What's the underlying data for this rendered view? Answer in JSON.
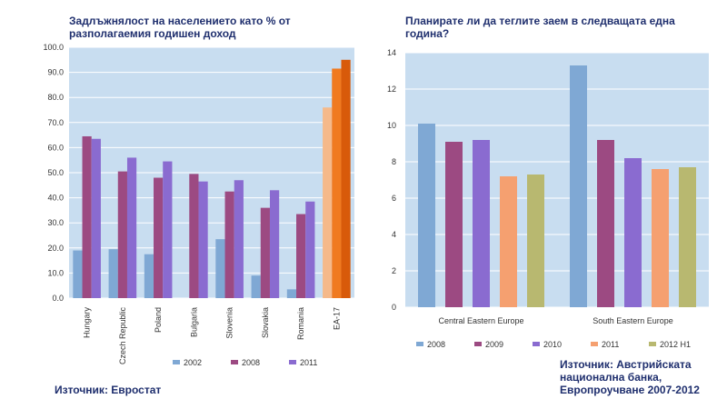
{
  "chart_data": [
    {
      "type": "bar",
      "title": "Задлъжнялост на населението като % от разполагаемия годишен доход",
      "source": "Източник: Евростат",
      "categories": [
        "Hungary",
        "Czech Republic",
        "Poland",
        "Bulgaria",
        "Slovenia",
        "Slovakia",
        "Romania",
        "EA-17"
      ],
      "series": [
        {
          "name": "2002",
          "values": [
            19,
            19.5,
            17.5,
            0,
            23.5,
            9,
            3.5,
            76
          ],
          "color": "#7fa8d4",
          "highlight": "#f5b98a"
        },
        {
          "name": "2008",
          "values": [
            64.5,
            50.5,
            48,
            49.5,
            42.5,
            36,
            33.5,
            91.5
          ],
          "color": "#9c4a82",
          "highlight": "#f07a20"
        },
        {
          "name": "2011",
          "values": [
            63.5,
            56,
            54.5,
            46.5,
            47,
            43,
            38.5,
            95
          ],
          "color": "#8a6bd0",
          "highlight": "#d85a0a"
        }
      ],
      "highlight_category": "EA-17",
      "ylim": [
        0,
        100
      ],
      "yticks": [
        "0.0",
        "10.0",
        "20.0",
        "30.0",
        "40.0",
        "50.0",
        "60.0",
        "70.0",
        "80.0",
        "90.0",
        "100.0"
      ],
      "grid": true,
      "legend": "bottom",
      "background": "#c8ddf0"
    },
    {
      "type": "bar",
      "title": "Планирате ли да теглите заем в следващата една година?",
      "source": "Източник: Австрийската национална банка, Европроучване 2007-2012",
      "categories": [
        "Central Eastern Europe",
        "South Eastern Europe"
      ],
      "series": [
        {
          "name": "2008",
          "values": [
            10.1,
            13.3
          ],
          "color": "#7fa8d4"
        },
        {
          "name": "2009",
          "values": [
            9.1,
            9.2
          ],
          "color": "#9c4a82"
        },
        {
          "name": "2010",
          "values": [
            9.2,
            8.2
          ],
          "color": "#8a6bd0"
        },
        {
          "name": "2011",
          "values": [
            7.2,
            7.6
          ],
          "color": "#f5a070"
        },
        {
          "name": "2012 H1",
          "values": [
            7.3,
            7.7
          ],
          "color": "#b8b870"
        }
      ],
      "ylim": [
        0,
        14
      ],
      "yticks": [
        "0",
        "2",
        "4",
        "6",
        "8",
        "10",
        "12",
        "14"
      ],
      "grid": true,
      "legend": "bottom",
      "background": "#c8ddf0"
    }
  ]
}
